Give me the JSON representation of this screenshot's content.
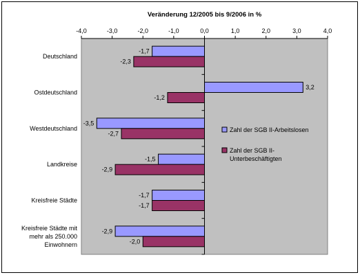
{
  "chart_data": {
    "type": "bar",
    "orientation": "horizontal",
    "title": "Veränderung 12/2005 bis 9/2006 in %",
    "xlim": [
      -4.0,
      4.0
    ],
    "xticks": [
      "-4,0",
      "-3,0",
      "-2,0",
      "-1,0",
      "0,0",
      "1,0",
      "2,0",
      "3,0",
      "4,0"
    ],
    "xtick_values": [
      -4,
      -3,
      -2,
      -1,
      0,
      1,
      2,
      3,
      4
    ],
    "categories": [
      [
        "Deutschland"
      ],
      [
        "Ostdeutschland"
      ],
      [
        "Westdeutschland"
      ],
      [
        "Landkreise"
      ],
      [
        "Kreisfreie Städte"
      ],
      [
        "Kreisfreie Städte mit",
        "mehr als 250.000",
        "Einwohnern"
      ]
    ],
    "series": [
      {
        "name": "Zahl der SGB II-Arbeitslosen",
        "legend_lines": [
          "Zahl der SGB II-Arbeitslosen"
        ],
        "color": "#9999ff",
        "values": [
          -1.7,
          3.2,
          -3.5,
          -1.5,
          -1.7,
          -2.9
        ],
        "labels": [
          "-1,7",
          "3,2",
          "-3,5",
          "-1,5",
          "-1,7",
          "-2,9"
        ]
      },
      {
        "name": "Zahl der SGB II-Unterbeschäftigten",
        "legend_lines": [
          "Zahl der SGB II-",
          "Unterbeschäftigten"
        ],
        "color": "#993366",
        "values": [
          -2.3,
          -1.2,
          -2.7,
          -2.9,
          -1.7,
          -2.0
        ],
        "labels": [
          "-2,3",
          "-1,2",
          "-2,7",
          "-2,9",
          "-1,7",
          "-2,0"
        ]
      }
    ],
    "plot_background": "#c0c0c0",
    "grid": false,
    "legend_position": "right"
  }
}
